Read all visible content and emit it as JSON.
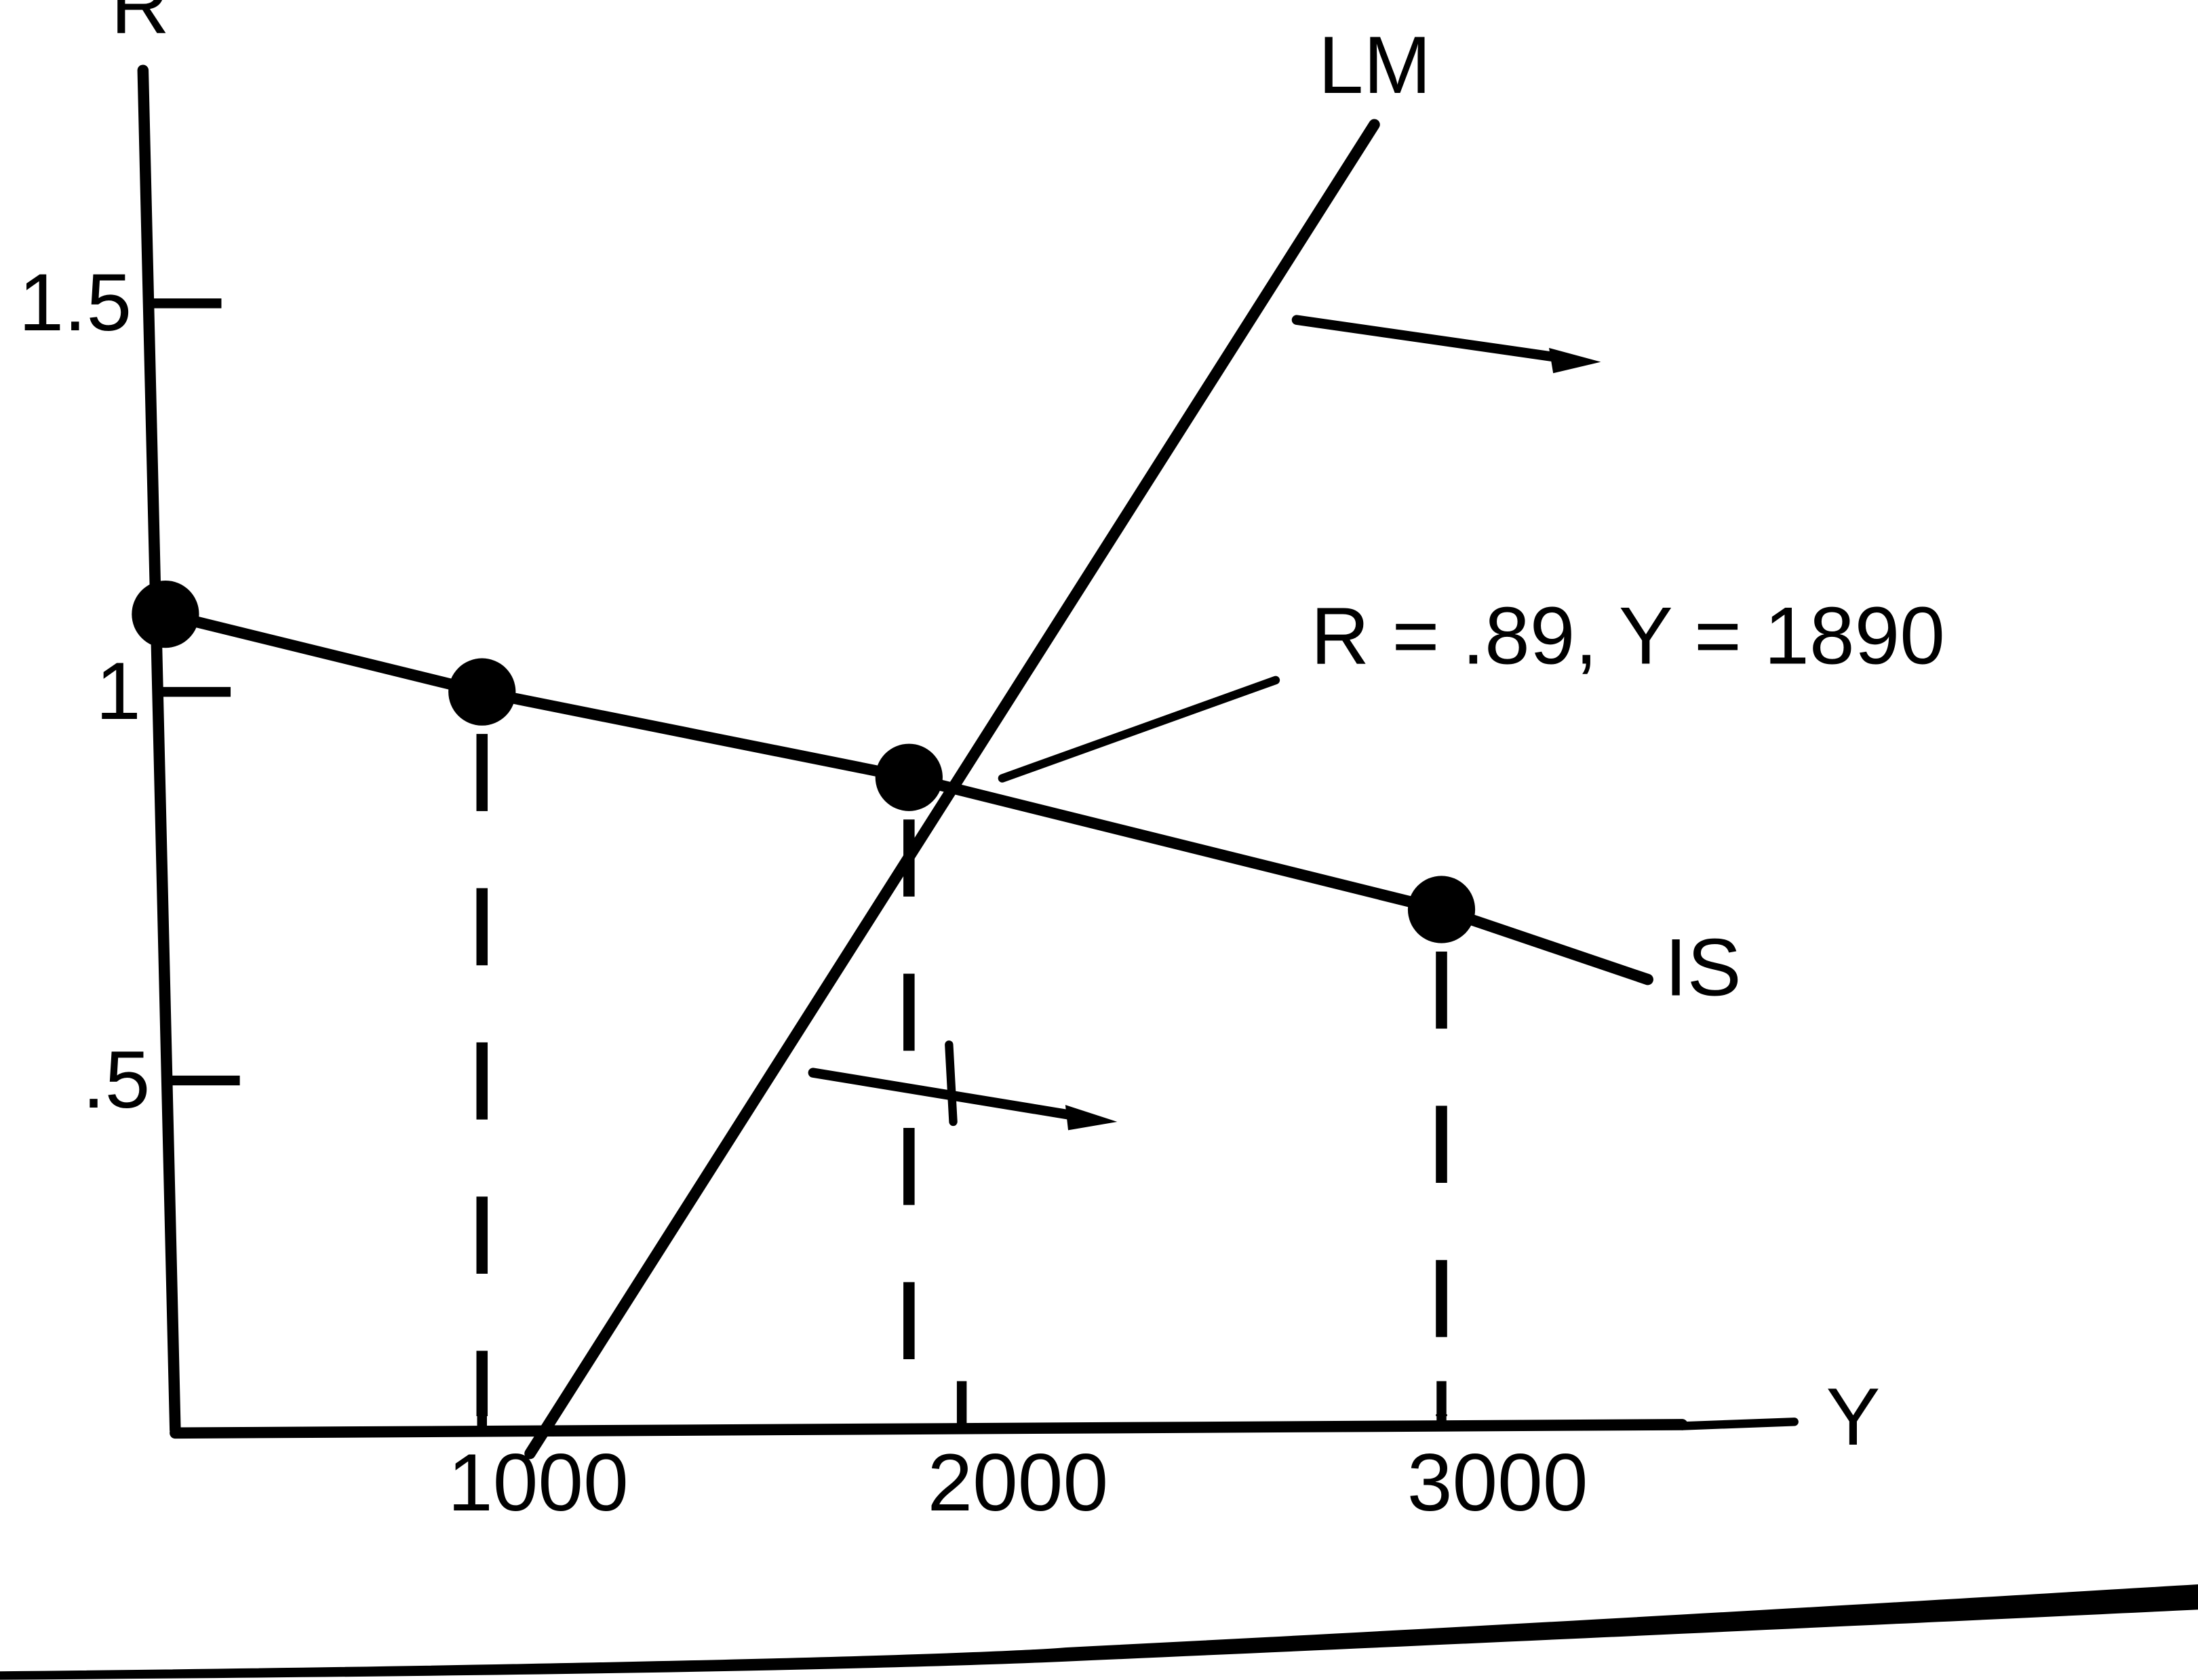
{
  "chart_data": {
    "type": "line",
    "y_label": "R",
    "x_label": "Y",
    "xlim": [
      340,
      3750
    ],
    "ylim": [
      0.05,
      1.89
    ],
    "xticks": [
      1000,
      2000,
      3000
    ],
    "yticks": [
      {
        "value": 0.5,
        "label": ".5"
      },
      1,
      1.5
    ],
    "series": [
      {
        "name": "IS",
        "color": "#000000",
        "x": [
          340,
          1000,
          1890,
          3000,
          3430
        ],
        "values": [
          1.1,
          1.0,
          0.89,
          0.72,
          0.63
        ]
      },
      {
        "name": "LM",
        "color": "#000000",
        "x": [
          1100,
          2860
        ],
        "values": [
          0.02,
          1.73
        ]
      }
    ],
    "annotation": "R = .89, Y = 1890"
  }
}
